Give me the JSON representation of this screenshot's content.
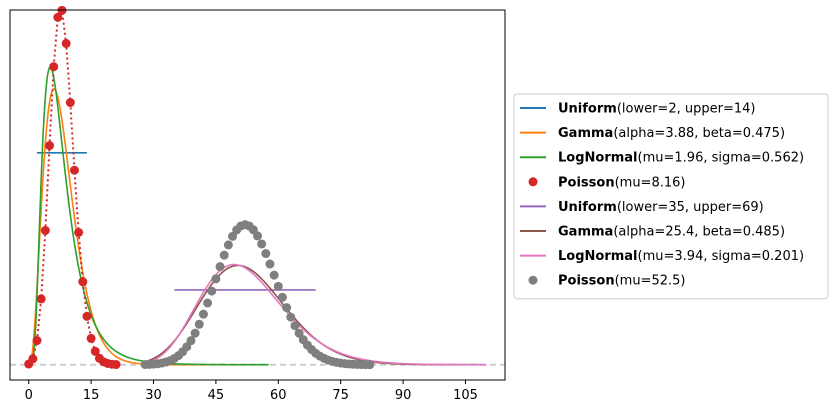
{
  "chart_data": {
    "type": "line",
    "title": "",
    "xlabel": "",
    "ylabel": "",
    "xlim": [
      -4.5,
      114.5
    ],
    "ylim": [
      -0.006,
      0.1395
    ],
    "xticks": [
      "0",
      "15",
      "30",
      "45",
      "60",
      "75",
      "90",
      "105"
    ],
    "xtick_values": [
      0,
      15,
      30,
      45,
      60,
      75,
      90,
      105
    ],
    "show_yticks": false,
    "grid": false,
    "baseline": {
      "y": 0,
      "color": "#cccccc",
      "style": "dashed"
    },
    "legend": {
      "placement": "outside-right",
      "entries": [
        {
          "name": "Uniform",
          "params": "(lower=2, upper=14)",
          "color": "#1f77b4",
          "marker": "line"
        },
        {
          "name": "Gamma",
          "params": "(alpha=3.88, beta=0.475)",
          "color": "#ff7f0e",
          "marker": "line"
        },
        {
          "name": "LogNormal",
          "params": "(mu=1.96, sigma=0.562)",
          "color": "#2ca02c",
          "marker": "line"
        },
        {
          "name": "Poisson",
          "params": "(mu=8.16)",
          "color": "#d62728",
          "marker": "dot"
        },
        {
          "name": "Uniform",
          "params": "(lower=35, upper=69)",
          "color": "#9467bd",
          "marker": "line"
        },
        {
          "name": "Gamma",
          "params": "(alpha=25.4, beta=0.485)",
          "color": "#8c564b",
          "marker": "line"
        },
        {
          "name": "LogNormal",
          "params": "(mu=3.94, sigma=0.201)",
          "color": "#e377c2",
          "marker": "line"
        },
        {
          "name": "Poisson",
          "params": "(mu=52.5)",
          "color": "#7f7f7f",
          "marker": "dot"
        }
      ]
    },
    "series": [
      {
        "kind": "uniform",
        "lower": 2,
        "upper": 14,
        "color": "#1f77b4"
      },
      {
        "kind": "gamma",
        "alpha": 3.88,
        "beta": 0.475,
        "x_range": [
          0,
          57.7
        ],
        "color": "#ff7f0e"
      },
      {
        "kind": "lognormal",
        "mu": 1.96,
        "sigma": 0.562,
        "x_range": [
          0,
          57.7
        ],
        "color": "#2ca02c"
      },
      {
        "kind": "poisson",
        "mu": 8.16,
        "k_range": [
          0,
          21
        ],
        "color": "#d62728",
        "connector": "dotted"
      },
      {
        "kind": "uniform",
        "lower": 35,
        "upper": 69,
        "color": "#9467bd"
      },
      {
        "kind": "gamma",
        "alpha": 25.4,
        "beta": 0.485,
        "x_range": [
          28,
          110
        ],
        "color": "#8c564b"
      },
      {
        "kind": "lognormal",
        "mu": 3.94,
        "sigma": 0.201,
        "x_range": [
          28,
          110
        ],
        "color": "#e377c2"
      },
      {
        "kind": "poisson",
        "mu": 52.5,
        "k_range": [
          28,
          82
        ],
        "color": "#7f7f7f",
        "connector": "none"
      }
    ]
  }
}
